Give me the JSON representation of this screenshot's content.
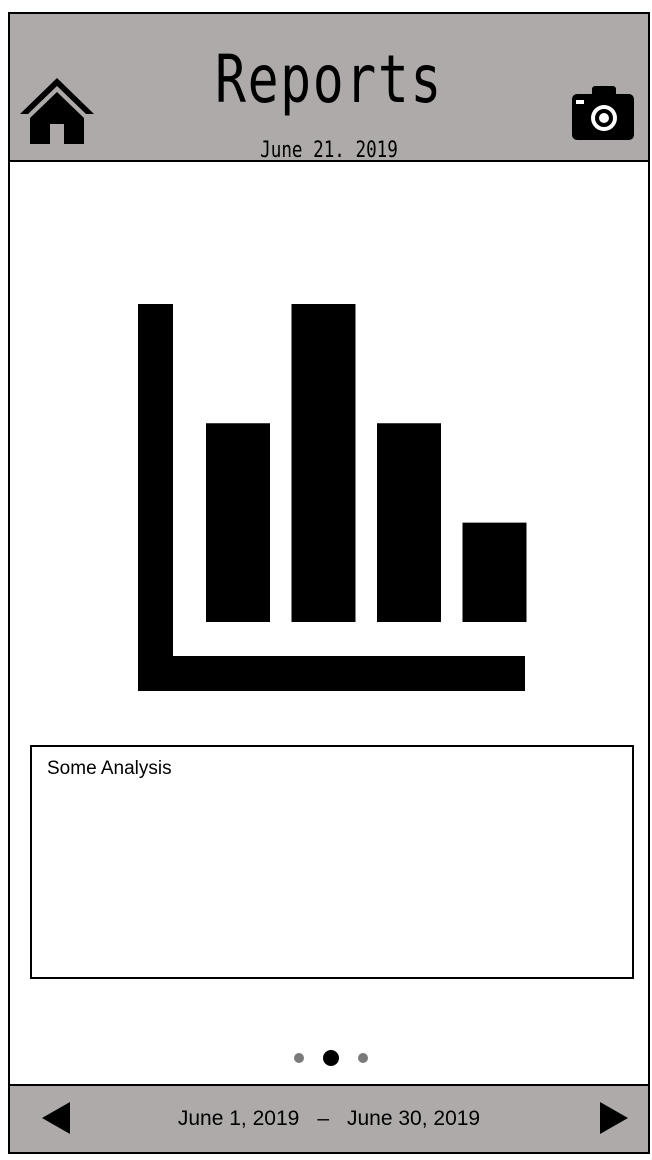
{
  "header": {
    "title": "Reports",
    "date": "June 21. 2019",
    "home_icon": "home-icon",
    "camera_icon": "camera-icon",
    "background": "#aeaaaa"
  },
  "chart_data": {
    "type": "bar",
    "categories": [
      "",
      "",
      "",
      ""
    ],
    "values": [
      10,
      16,
      10,
      5
    ],
    "title": "",
    "xlabel": "",
    "ylabel": "",
    "ylim": [
      0,
      16
    ],
    "grid": false,
    "color": "#000000"
  },
  "analysis": {
    "text": "Some Analysis"
  },
  "pager": {
    "count": 3,
    "active_index": 1
  },
  "footer": {
    "start_date": "June 1, 2019",
    "separator": "–",
    "end_date": "June 30, 2019",
    "prev_icon": "left-arrow-icon",
    "next_icon": "right-arrow-icon"
  }
}
